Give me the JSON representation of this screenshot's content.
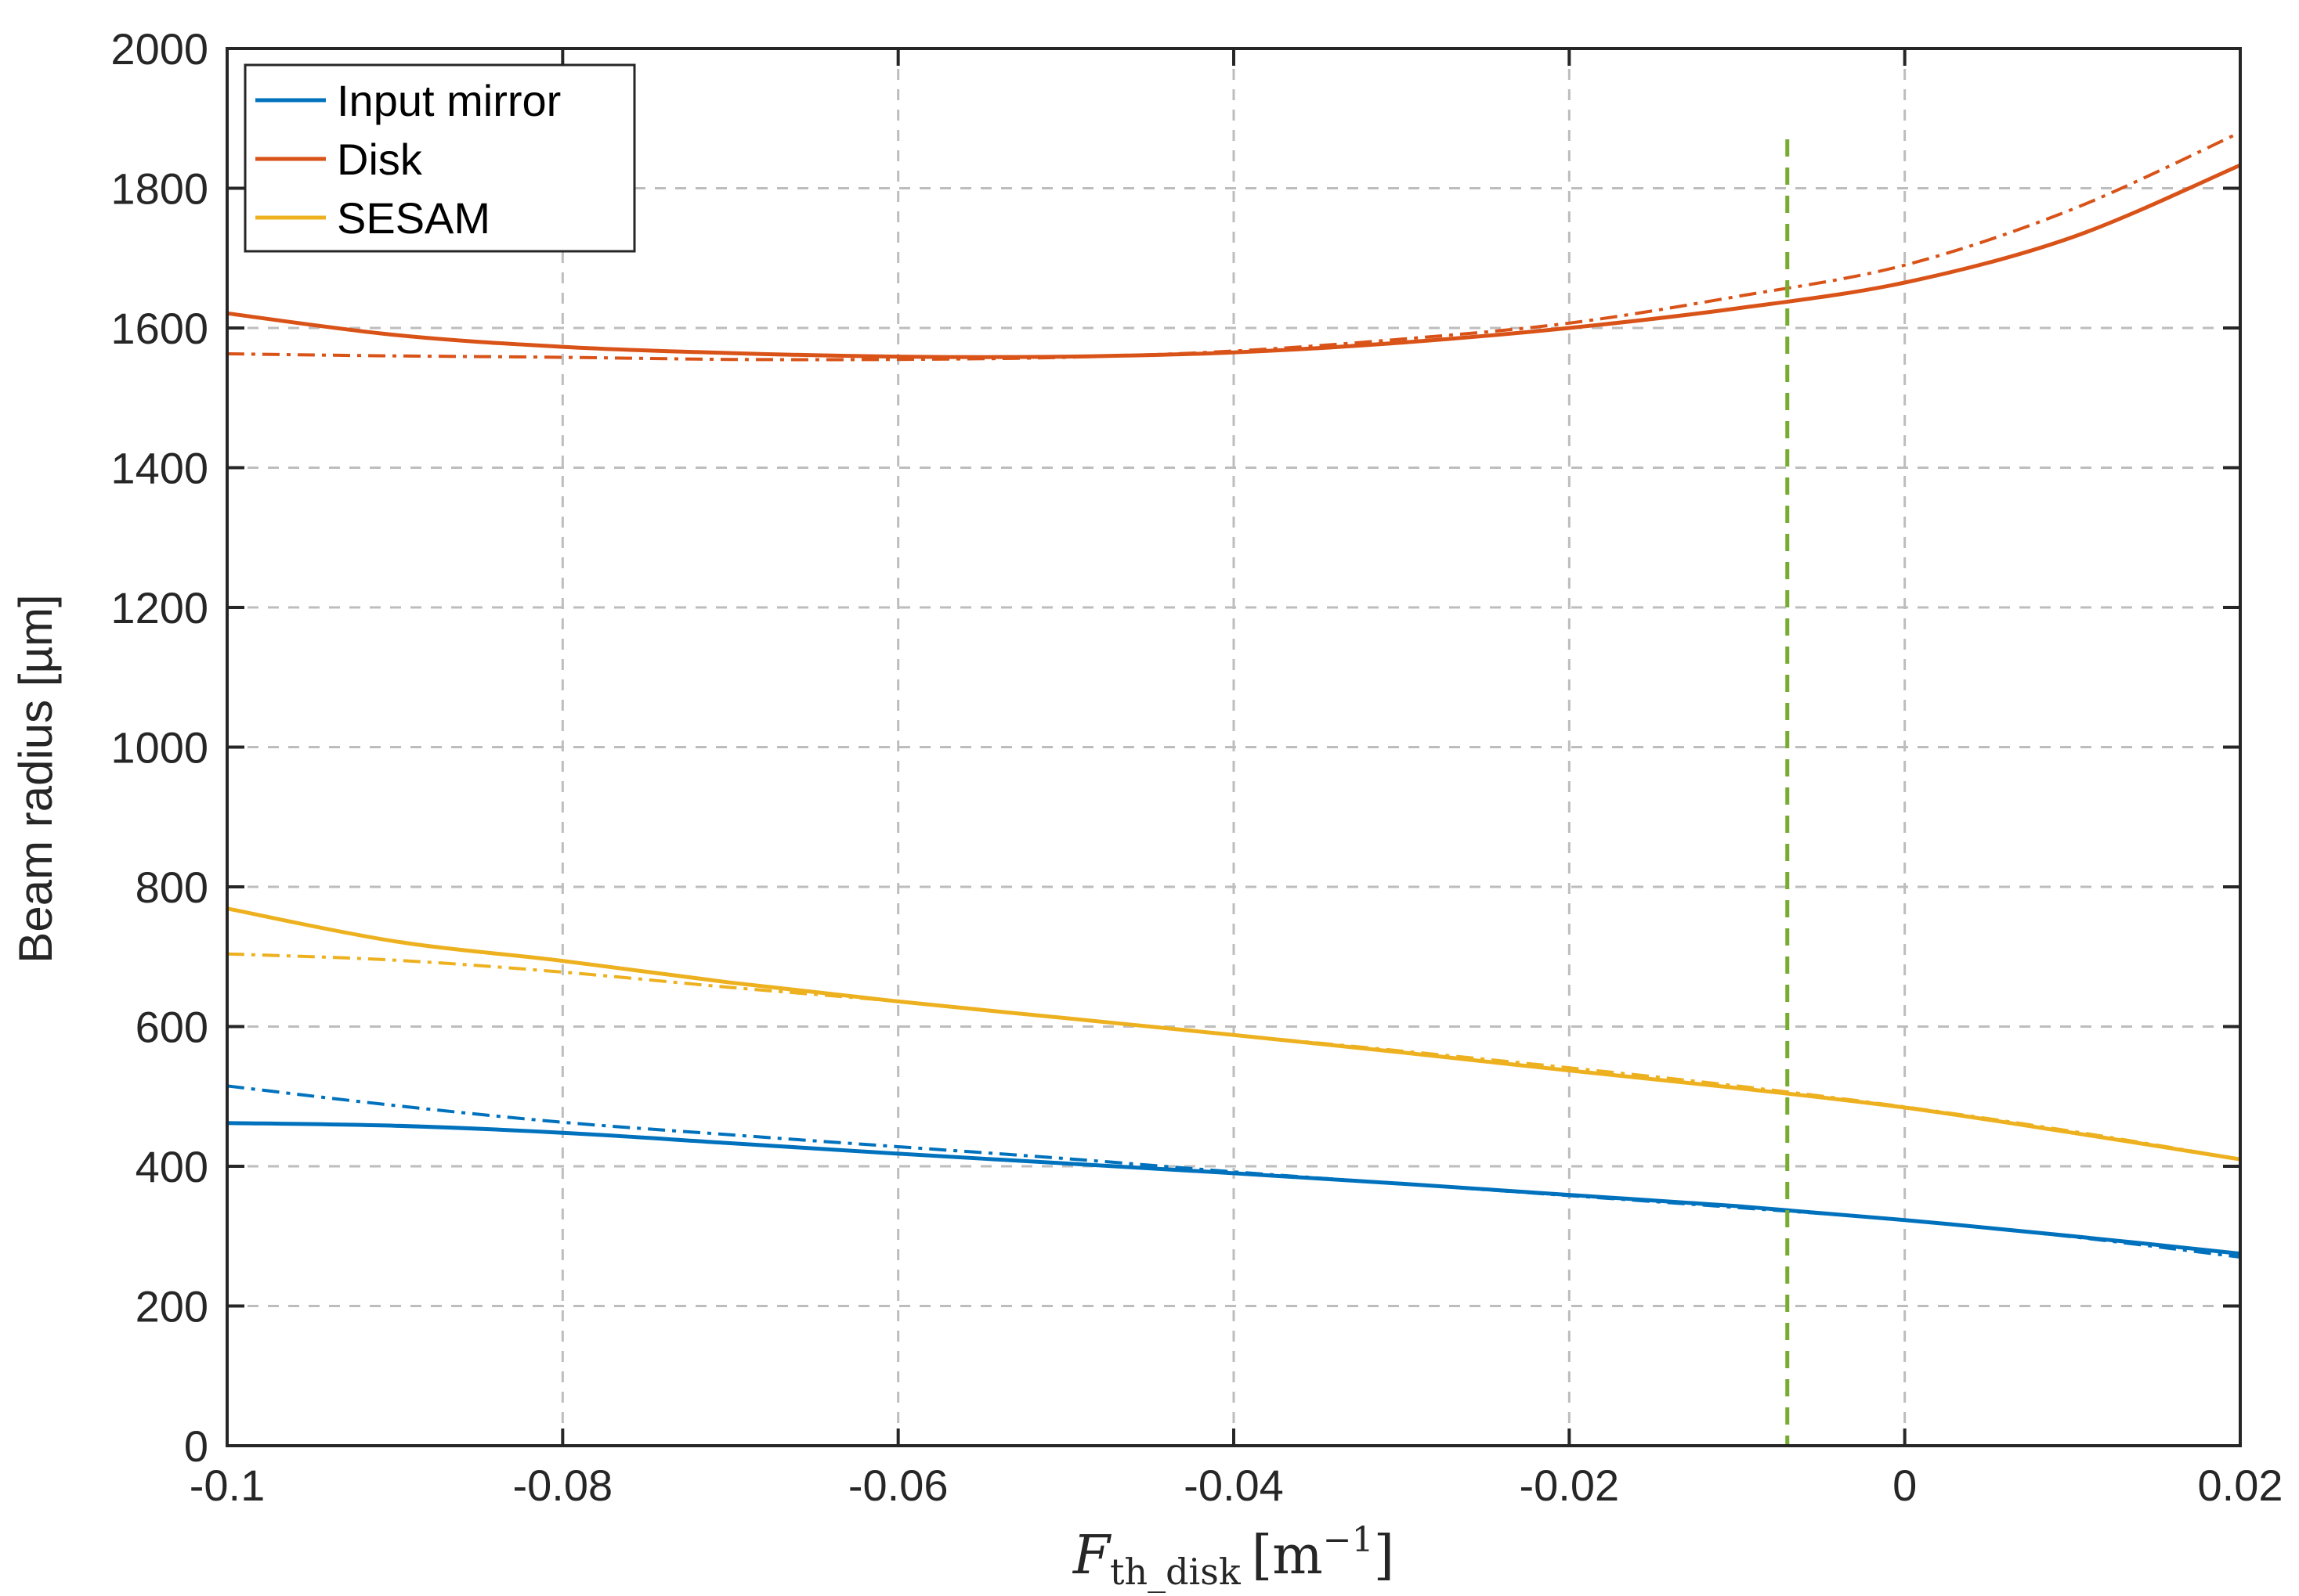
{
  "chart_data": {
    "type": "line",
    "title": "",
    "xlabel": {
      "main": "F",
      "sub": "th_disk",
      "unit_open": "[m",
      "unit_sup": "−1",
      "unit_close": "]"
    },
    "ylabel": "Beam radius [µm]",
    "xlim": [
      -0.1,
      0.02
    ],
    "ylim": [
      0,
      2000
    ],
    "xticks": [
      -0.1,
      -0.08,
      -0.06,
      -0.04,
      -0.02,
      0,
      0.02
    ],
    "xtick_labels": [
      "-0.1",
      "-0.08",
      "-0.06",
      "-0.04",
      "-0.02",
      "0",
      "0.02"
    ],
    "yticks": [
      0,
      200,
      400,
      600,
      800,
      1000,
      1200,
      1400,
      1600,
      1800,
      2000
    ],
    "ytick_labels": [
      "0",
      "200",
      "400",
      "600",
      "800",
      "1000",
      "1200",
      "1400",
      "1600",
      "1800",
      "2000"
    ],
    "grid": true,
    "legend_position": "top-left",
    "colors": {
      "input_mirror": "#0072BD",
      "disk": "#D95319",
      "sesam": "#EDB120",
      "marker_line": "#77AC30"
    },
    "vertical_marker": {
      "x": -0.007,
      "y_range": [
        0,
        1870
      ],
      "style": "dashed"
    },
    "x": [
      -0.1,
      -0.09,
      -0.08,
      -0.07,
      -0.06,
      -0.05,
      -0.04,
      -0.03,
      -0.02,
      -0.01,
      0,
      0.01,
      0.02
    ],
    "series": [
      {
        "name": "Input mirror",
        "style": "solid",
        "values": [
          462,
          458,
          448,
          433,
          418,
          404,
          390,
          375,
          359,
          343,
          323,
          300,
          275
        ]
      },
      {
        "style": "dashdot",
        "values": [
          515,
          487,
          463,
          445,
          428,
          411,
          392,
          375,
          358,
          341,
          323,
          299,
          270
        ]
      },
      {
        "name": "Disk",
        "style": "solid",
        "values": [
          1621,
          1590,
          1573,
          1564,
          1559,
          1559,
          1565,
          1579,
          1600,
          1628,
          1665,
          1730,
          1833
        ]
      },
      {
        "style": "dashdot",
        "values": [
          1563,
          1560,
          1558,
          1555,
          1555,
          1558,
          1567,
          1584,
          1607,
          1645,
          1690,
          1770,
          1880
        ]
      },
      {
        "name": "SESAM",
        "style": "solid",
        "values": [
          769,
          722,
          694,
          663,
          636,
          612,
          588,
          563,
          537,
          512,
          484,
          448,
          410
        ]
      },
      {
        "style": "dashdot",
        "values": [
          704,
          695,
          678,
          656,
          636,
          612,
          588,
          565,
          541,
          515,
          485,
          450,
          410
        ]
      }
    ],
    "legend": [
      "Input mirror",
      "Disk",
      "SESAM"
    ]
  }
}
